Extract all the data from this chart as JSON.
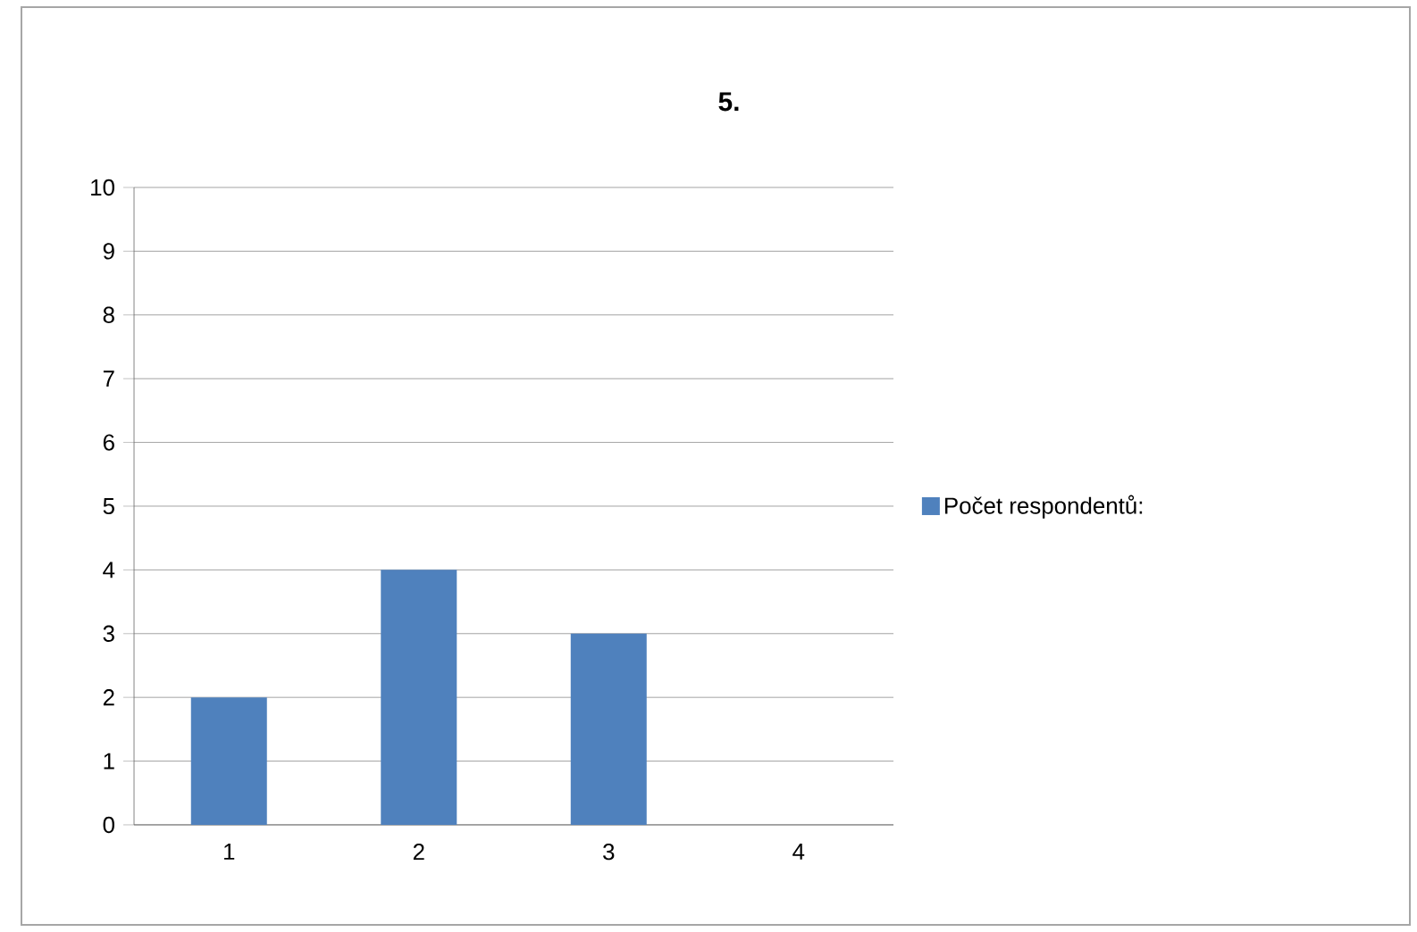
{
  "chart_data": {
    "type": "bar",
    "title": "5.",
    "categories": [
      "1",
      "2",
      "3",
      "4"
    ],
    "series": [
      {
        "name": "Počet respondentů:",
        "color": "#4f81bd",
        "values": [
          2,
          4,
          3,
          0
        ]
      }
    ],
    "ylim": [
      0,
      10
    ],
    "yticks": [
      0,
      1,
      2,
      3,
      4,
      5,
      6,
      7,
      8,
      9,
      10
    ],
    "grid": "y",
    "legend": "right"
  }
}
